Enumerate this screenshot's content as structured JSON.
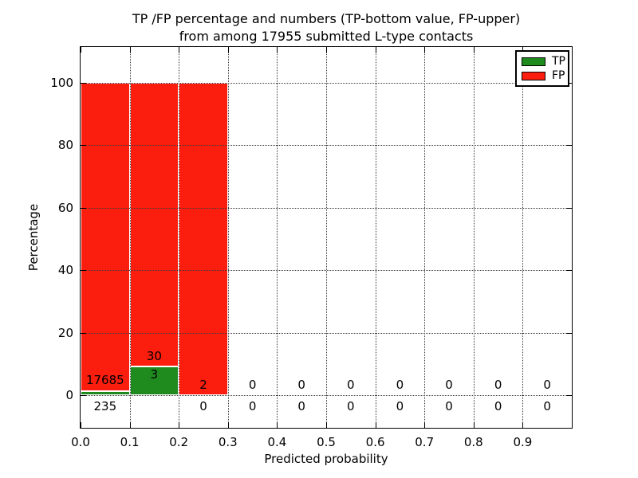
{
  "chart_data": {
    "type": "bar",
    "stacked": true,
    "title_lines": [
      "TP /FP percentage and numbers (TP-bottom value, FP-upper)",
      "from among 17955 submitted L-type contacts"
    ],
    "xlabel": "Predicted probability",
    "ylabel": "Percentage",
    "xlim": [
      0.0,
      1.0
    ],
    "ylim": [
      -10.5,
      111.5
    ],
    "grid": true,
    "bar_width": 0.1,
    "x_ticks": [
      {
        "v": 0.0,
        "label": "0.0"
      },
      {
        "v": 0.1,
        "label": "0.1"
      },
      {
        "v": 0.2,
        "label": "0.2"
      },
      {
        "v": 0.3,
        "label": "0.3"
      },
      {
        "v": 0.4,
        "label": "0.4"
      },
      {
        "v": 0.5,
        "label": "0.5"
      },
      {
        "v": 0.6,
        "label": "0.6"
      },
      {
        "v": 0.7,
        "label": "0.7"
      },
      {
        "v": 0.8,
        "label": "0.8"
      },
      {
        "v": 0.9,
        "label": "0.9"
      },
      {
        "v": 1.0,
        "label": ""
      }
    ],
    "y_ticks": [
      {
        "v": 0,
        "label": "0"
      },
      {
        "v": 20,
        "label": "20"
      },
      {
        "v": 40,
        "label": "40"
      },
      {
        "v": 60,
        "label": "60"
      },
      {
        "v": 80,
        "label": "80"
      },
      {
        "v": 100,
        "label": "100"
      }
    ],
    "bins": [
      {
        "range": [
          0.0,
          0.1
        ],
        "tp": 235,
        "fp": 17685,
        "tp_pct": 1.31,
        "fp_pct": 98.69
      },
      {
        "range": [
          0.1,
          0.2
        ],
        "tp": 3,
        "fp": 30,
        "tp_pct": 9.09,
        "fp_pct": 90.91
      },
      {
        "range": [
          0.2,
          0.3
        ],
        "tp": 0,
        "fp": 2,
        "tp_pct": 0.0,
        "fp_pct": 100.0
      },
      {
        "range": [
          0.3,
          0.4
        ],
        "tp": 0,
        "fp": 0,
        "tp_pct": 0.0,
        "fp_pct": 0.0
      },
      {
        "range": [
          0.4,
          0.5
        ],
        "tp": 0,
        "fp": 0,
        "tp_pct": 0.0,
        "fp_pct": 0.0
      },
      {
        "range": [
          0.5,
          0.6
        ],
        "tp": 0,
        "fp": 0,
        "tp_pct": 0.0,
        "fp_pct": 0.0
      },
      {
        "range": [
          0.6,
          0.7
        ],
        "tp": 0,
        "fp": 0,
        "tp_pct": 0.0,
        "fp_pct": 0.0
      },
      {
        "range": [
          0.7,
          0.8
        ],
        "tp": 0,
        "fp": 0,
        "tp_pct": 0.0,
        "fp_pct": 0.0
      },
      {
        "range": [
          0.8,
          0.9
        ],
        "tp": 0,
        "fp": 0,
        "tp_pct": 0.0,
        "fp_pct": 0.0
      },
      {
        "range": [
          0.9,
          1.0
        ],
        "tp": 0,
        "fp": 0,
        "tp_pct": 0.0,
        "fp_pct": 0.0
      }
    ],
    "legend": {
      "position": "upper right",
      "entries": [
        {
          "label": "TP",
          "color": "#1f8b1f"
        },
        {
          "label": "FP",
          "color": "#fb1e0e"
        }
      ]
    },
    "colors": {
      "tp": "#1f8b1f",
      "fp": "#fb1e0e",
      "grid": "#3a3a3a",
      "frame": "#000000",
      "background": "#ffffff",
      "text": "#000000"
    }
  }
}
